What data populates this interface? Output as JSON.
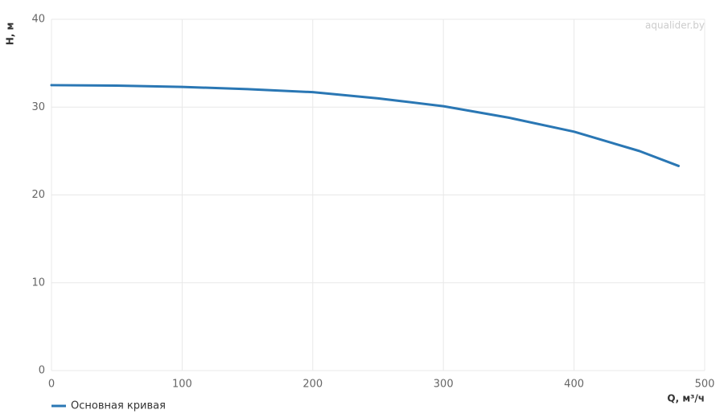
{
  "chart_data": {
    "type": "line",
    "x_label": "Q, м³/ч",
    "y_label": "H, м",
    "watermark": "aqualider.by",
    "x": [
      0,
      50,
      100,
      150,
      200,
      250,
      300,
      350,
      400,
      450,
      480
    ],
    "series": [
      {
        "name": "Основная кривая",
        "color": "#2a77b4",
        "values": [
          32.5,
          32.45,
          32.3,
          32.05,
          31.7,
          31.0,
          30.1,
          28.8,
          27.2,
          25.0,
          23.3
        ]
      }
    ],
    "xlim": [
      0,
      500
    ],
    "xticks": [
      0,
      100,
      200,
      300,
      400,
      500
    ],
    "ylim": [
      0,
      40
    ],
    "yticks": [
      0,
      10,
      20,
      30,
      40
    ],
    "grid": true,
    "legend": "bottom-left"
  }
}
